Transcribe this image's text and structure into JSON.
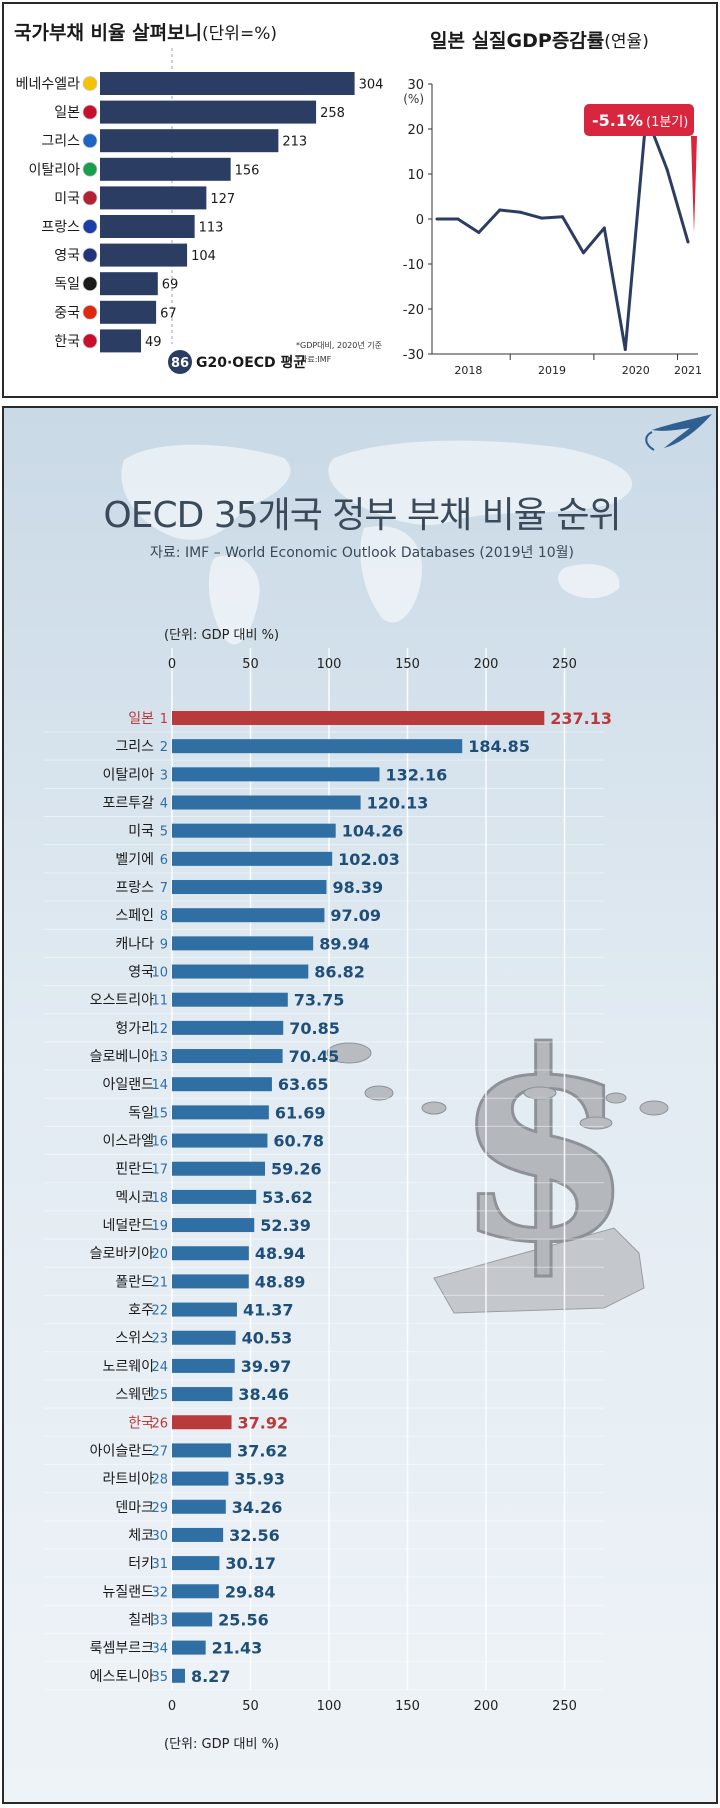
{
  "chart_data": [
    {
      "type": "bar",
      "title": "국가부채 비율 살펴보니",
      "subtitle": "(단위=%)",
      "categories": [
        "베네수엘라",
        "일본",
        "그리스",
        "이탈리아",
        "미국",
        "프랑스",
        "영국",
        "독일",
        "중국",
        "한국"
      ],
      "values": [
        304,
        258,
        213,
        156,
        127,
        113,
        104,
        69,
        67,
        49
      ],
      "flag_colors": [
        "#f4c300",
        "#c8102e",
        "#1e66c1",
        "#1b9e4b",
        "#b22234",
        "#1b3ea8",
        "#23357a",
        "#1a1a1a",
        "#de2910",
        "#c8102e"
      ],
      "annotation": {
        "value": "86",
        "label": "G20·OECD 평균"
      },
      "notes": [
        "*GDP대비, 2020년 기준",
        "*자료:IMF"
      ],
      "bar_color": "#2b3d63",
      "xlim": [
        0,
        320
      ]
    },
    {
      "type": "line",
      "title": "일본 실질GDP증감률",
      "subtitle": "(연율)",
      "ylabel": "(%)",
      "ylim": [
        -30,
        30
      ],
      "yticks": [
        "30",
        "20",
        "10",
        "0",
        "-10",
        "-20",
        "-30"
      ],
      "xticks": [
        "2018",
        "2019",
        "2020",
        "2021"
      ],
      "series": [
        {
          "x": [
            "2018-Q1",
            "2018-Q2",
            "2018-Q3",
            "2018-Q4",
            "2019-Q1",
            "2019-Q2",
            "2019-Q3",
            "2019-Q4",
            "2020-Q1",
            "2020-Q2",
            "2020-Q3",
            "2020-Q4",
            "2021-Q1"
          ],
          "values": [
            0,
            0,
            -3,
            2,
            1.5,
            0.2,
            0.5,
            -7.5,
            -2,
            -29,
            23,
            11,
            -5.1
          ]
        }
      ],
      "callout": {
        "value": "-5.1%",
        "label": "(1분기)"
      },
      "line_color": "#2b3d63",
      "callout_color": "#d7263d"
    },
    {
      "type": "bar",
      "title": "OECD 35개국 정부 부채 비율 순위",
      "source": "자료: IMF – World Economic Outlook Databases (2019년 10월)",
      "unit": "(단위: GDP 대비 %)",
      "xlim": [
        0,
        260
      ],
      "xticks": [
        "0",
        "50",
        "100",
        "150",
        "200",
        "250"
      ],
      "countries": [
        "일본",
        "그리스",
        "이탈리아",
        "포르투갈",
        "미국",
        "벨기에",
        "프랑스",
        "스페인",
        "캐나다",
        "영국",
        "오스트리아",
        "헝가리",
        "슬로베니아",
        "아일랜드",
        "독일",
        "이스라엘",
        "핀란드",
        "멕시코",
        "네덜란드",
        "슬로바키아",
        "폴란드",
        "호주",
        "스위스",
        "노르웨이",
        "스웨덴",
        "한국",
        "아이슬란드",
        "라트비아",
        "덴마크",
        "체코",
        "터키",
        "뉴질랜드",
        "칠레",
        "룩셈부르크",
        "에스토니아"
      ],
      "ranks": [
        "1",
        "2",
        "3",
        "4",
        "5",
        "6",
        "7",
        "8",
        "9",
        "10",
        "11",
        "12",
        "13",
        "14",
        "15",
        "16",
        "17",
        "18",
        "19",
        "20",
        "21",
        "22",
        "23",
        "24",
        "25",
        "26",
        "27",
        "28",
        "29",
        "30",
        "31",
        "32",
        "33",
        "34",
        "35"
      ],
      "values": [
        237.13,
        184.85,
        132.16,
        120.13,
        104.26,
        102.03,
        98.39,
        97.09,
        89.94,
        86.82,
        73.75,
        70.85,
        70.45,
        63.65,
        61.69,
        60.78,
        59.26,
        53.62,
        52.39,
        48.94,
        48.89,
        41.37,
        40.53,
        39.97,
        38.46,
        37.92,
        37.62,
        35.93,
        34.26,
        32.56,
        30.17,
        29.84,
        25.56,
        21.43,
        8.27
      ],
      "value_labels": [
        "237.13",
        "184.85",
        "132.16",
        "120.13",
        "104.26",
        "102.03",
        "98.39",
        "97.09",
        "89.94",
        "86.82",
        "73.75",
        "70.85",
        "70.45",
        "63.65",
        "61.69",
        "60.78",
        "59.26",
        "53.62",
        "52.39",
        "48.94",
        "48.89",
        "41.37",
        "40.53",
        "39.97",
        "38.46",
        "37.92",
        "37.62",
        "35.93",
        "34.26",
        "32.56",
        "30.17",
        "29.84",
        "25.56",
        "21.43",
        "8.27"
      ],
      "highlight": [
        "일본",
        "한국"
      ],
      "bar_color": "#2f6fa3",
      "highlight_color": "#b83a3a"
    }
  ]
}
